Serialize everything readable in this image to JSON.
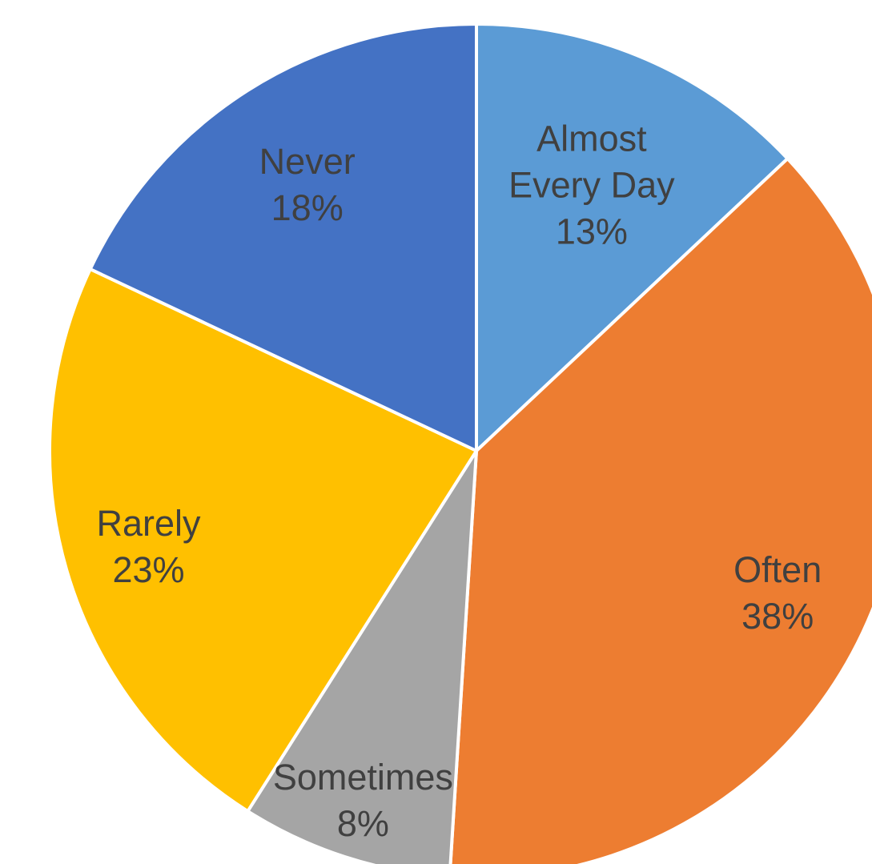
{
  "chart_data": {
    "type": "pie",
    "title": "",
    "slices": [
      {
        "label": "Almost Every Day",
        "label_lines": [
          "Almost",
          "Every Day"
        ],
        "value": 13,
        "value_label": "13%",
        "color": "#5B9BD5"
      },
      {
        "label": "Often",
        "label_lines": [
          "Often"
        ],
        "value": 38,
        "value_label": "38%",
        "color": "#ED7D31"
      },
      {
        "label": "Sometimes",
        "label_lines": [
          "Sometimes"
        ],
        "value": 8,
        "value_label": "8%",
        "color": "#A5A5A5"
      },
      {
        "label": "Rarely",
        "label_lines": [
          "Rarely"
        ],
        "value": 23,
        "value_label": "23%",
        "color": "#FFC000"
      },
      {
        "label": "Never",
        "label_lines": [
          "Never"
        ],
        "value": 18,
        "value_label": "18%",
        "color": "#4472C4"
      }
    ],
    "start_angle_deg": 0,
    "direction": "clockwise",
    "legend": "none",
    "data_labels": "inside"
  }
}
